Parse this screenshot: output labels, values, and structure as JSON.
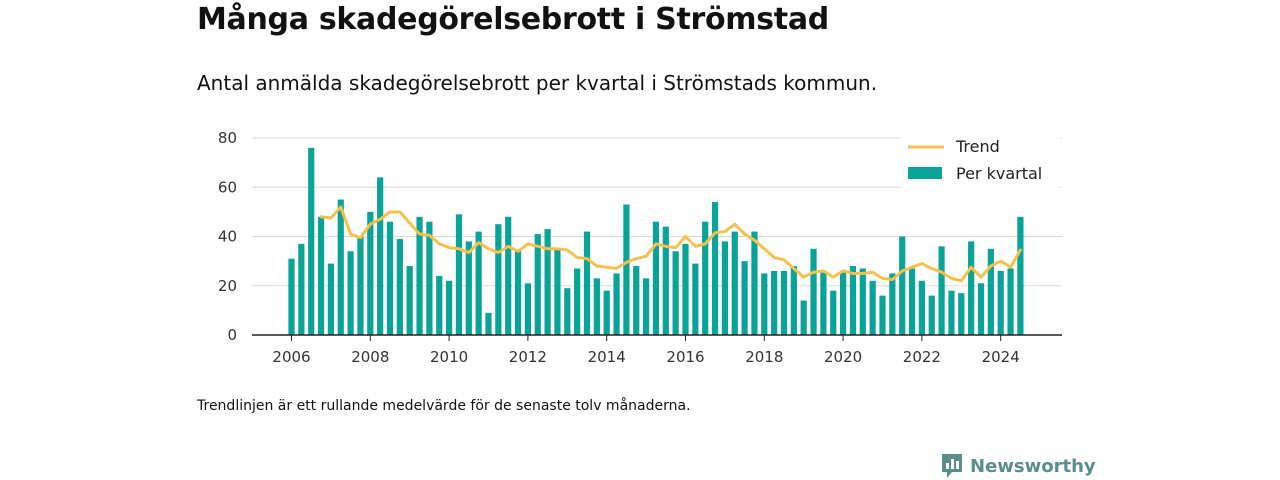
{
  "header": {
    "title": "Många skadegörelsebrott i Strömstad",
    "subtitle": "Antal anmälda skadegörelsebrott per kvartal i Strömstads kommun."
  },
  "footnote": "Trendlinjen är ett rullande medelvärde för de senaste tolv månaderna.",
  "brand": {
    "name": "Newsworthy",
    "icon": "newsworthy-logo-icon"
  },
  "colors": {
    "bar": "#0aa39a",
    "trend": "#f6c04c",
    "grid": "#d9d9d9",
    "axis": "#222222"
  },
  "chart_data": {
    "type": "bar",
    "title": "Många skadegörelsebrott i Strömstad",
    "subtitle": "Antal anmälda skadegörelsebrott per kvartal i Strömstads kommun.",
    "xlabel": "",
    "ylabel": "",
    "ylim": [
      0,
      80
    ],
    "yticks": [
      "0",
      "20",
      "40",
      "60",
      "80"
    ],
    "xticks": [
      "2006",
      "2008",
      "2010",
      "2012",
      "2014",
      "2016",
      "2018",
      "2020",
      "2022",
      "2024"
    ],
    "grid": true,
    "legend_position": "top-right",
    "legend": [
      "Trend",
      "Per kvartal"
    ],
    "x_start": "2006 Q1",
    "categories": [
      "2006 Q1",
      "2006 Q2",
      "2006 Q3",
      "2006 Q4",
      "2007 Q1",
      "2007 Q2",
      "2007 Q3",
      "2007 Q4",
      "2008 Q1",
      "2008 Q2",
      "2008 Q3",
      "2008 Q4",
      "2009 Q1",
      "2009 Q2",
      "2009 Q3",
      "2009 Q4",
      "2010 Q1",
      "2010 Q2",
      "2010 Q3",
      "2010 Q4",
      "2011 Q1",
      "2011 Q2",
      "2011 Q3",
      "2011 Q4",
      "2012 Q1",
      "2012 Q2",
      "2012 Q3",
      "2012 Q4",
      "2013 Q1",
      "2013 Q2",
      "2013 Q3",
      "2013 Q4",
      "2014 Q1",
      "2014 Q2",
      "2014 Q3",
      "2014 Q4",
      "2015 Q1",
      "2015 Q2",
      "2015 Q3",
      "2015 Q4",
      "2016 Q1",
      "2016 Q2",
      "2016 Q3",
      "2016 Q4",
      "2017 Q1",
      "2017 Q2",
      "2017 Q3",
      "2017 Q4",
      "2018 Q1",
      "2018 Q2",
      "2018 Q3",
      "2018 Q4",
      "2019 Q1",
      "2019 Q2",
      "2019 Q3",
      "2019 Q4",
      "2020 Q1",
      "2020 Q2",
      "2020 Q3",
      "2020 Q4",
      "2021 Q1",
      "2021 Q2",
      "2021 Q3",
      "2021 Q4",
      "2022 Q1",
      "2022 Q2",
      "2022 Q3",
      "2022 Q4",
      "2023 Q1",
      "2023 Q2",
      "2023 Q3",
      "2023 Q4",
      "2024 Q1",
      "2024 Q2",
      "2024 Q3"
    ],
    "series": [
      {
        "name": "Per kvartal",
        "type": "bar",
        "values": [
          31,
          37,
          76,
          48,
          29,
          55,
          34,
          40,
          50,
          64,
          46,
          39,
          28,
          48,
          46,
          24,
          22,
          49,
          38,
          42,
          9,
          45,
          48,
          34,
          21,
          41,
          43,
          35,
          19,
          27,
          42,
          23,
          18,
          25,
          53,
          28,
          23,
          46,
          44,
          34,
          37,
          29,
          46,
          54,
          38,
          42,
          30,
          42,
          25,
          26,
          26,
          28,
          14,
          35,
          26,
          18,
          26,
          28,
          27,
          22,
          16,
          25,
          40,
          27,
          22,
          16,
          36,
          18,
          17,
          38,
          21,
          35,
          26,
          27,
          48
        ]
      },
      {
        "name": "Trend",
        "type": "line",
        "values": [
          null,
          null,
          null,
          48,
          47.5,
          52,
          41,
          39.5,
          45,
          47,
          50,
          50,
          45.5,
          41,
          40.5,
          37,
          35.5,
          35,
          33.5,
          37.5,
          35,
          33.5,
          36,
          34,
          37,
          36,
          35,
          35,
          34.5,
          31.5,
          31,
          28,
          27.5,
          27,
          29.5,
          31,
          32,
          37,
          36,
          35.5,
          40,
          36,
          37,
          41.5,
          42,
          45,
          41,
          38.5,
          35,
          31.5,
          30.5,
          27,
          23.5,
          25.5,
          26,
          23.5,
          26,
          25,
          25,
          25.5,
          23,
          22.5,
          26,
          27.5,
          29,
          27,
          25.5,
          23,
          22,
          27.5,
          23.5,
          28,
          30,
          27.5,
          34.5
        ]
      }
    ]
  }
}
